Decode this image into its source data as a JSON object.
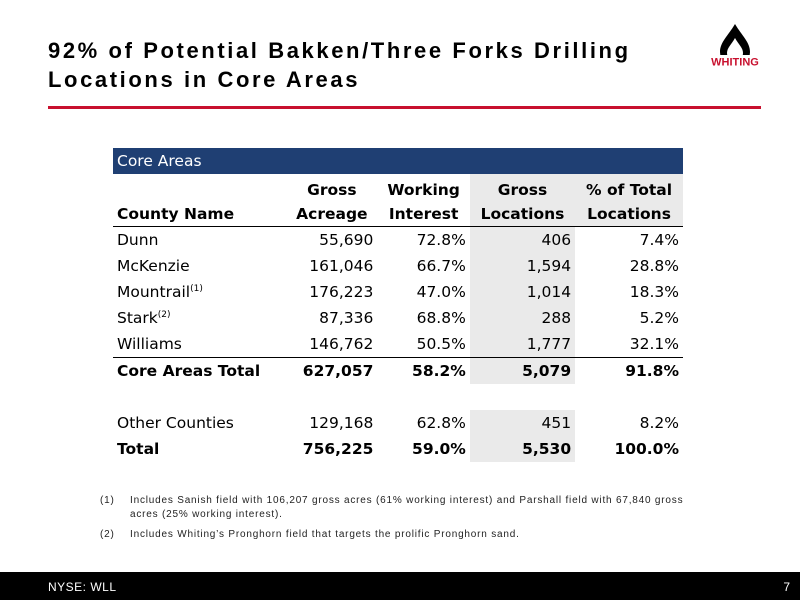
{
  "header": {
    "title_lines": [
      "92% of Potential Bakken/Three Forks Drilling",
      "Locations in Core Areas"
    ],
    "logo": "WHITING"
  },
  "table": {
    "caption": "Core Areas",
    "headers": [
      [
        "County Name"
      ],
      [
        "Gross",
        "Acreage"
      ],
      [
        "Working",
        "Interest"
      ],
      [
        "Gross",
        "Locations"
      ],
      [
        "% of Total",
        "Locations"
      ]
    ],
    "rows": [
      {
        "cells": [
          "Dunn",
          "55,690",
          "72.8%",
          "406",
          "7.4%"
        ]
      },
      {
        "cells": [
          "McKenzie",
          "161,046",
          "66.7%",
          "1,594",
          "28.8%"
        ]
      },
      {
        "cells": [
          "Mountrail",
          "176,223",
          "47.0%",
          "1,014",
          "18.3%"
        ],
        "note": "(1)"
      },
      {
        "cells": [
          "Stark",
          "87,336",
          "68.8%",
          "288",
          "5.2%"
        ],
        "note": "(2)"
      },
      {
        "cells": [
          "Williams",
          "146,762",
          "50.5%",
          "1,777",
          "32.1%"
        ]
      },
      {
        "cells": [
          "Core Areas Total",
          "627,057",
          "58.2%",
          "5,079",
          "91.8%"
        ],
        "bold": true
      },
      {
        "cells": [
          "Other Counties",
          "129,168",
          "62.8%",
          "451",
          "8.2%"
        ]
      },
      {
        "cells": [
          "Total",
          "756,225",
          "59.0%",
          "5,530",
          "100.0%"
        ],
        "bold": true
      }
    ]
  },
  "footnotes": [
    {
      "marker": "(1)",
      "text": "Includes Sanish field with 106,207 gross acres (61% working interest) and Parshall field with 67,840 gross acres (25% working interest)."
    },
    {
      "marker": "(2)",
      "text": "Includes Whiting’s Pronghorn field that targets the prolific Pronghorn sand."
    }
  ],
  "footer": {
    "ticker": "NYSE: WLL",
    "page": "7"
  }
}
